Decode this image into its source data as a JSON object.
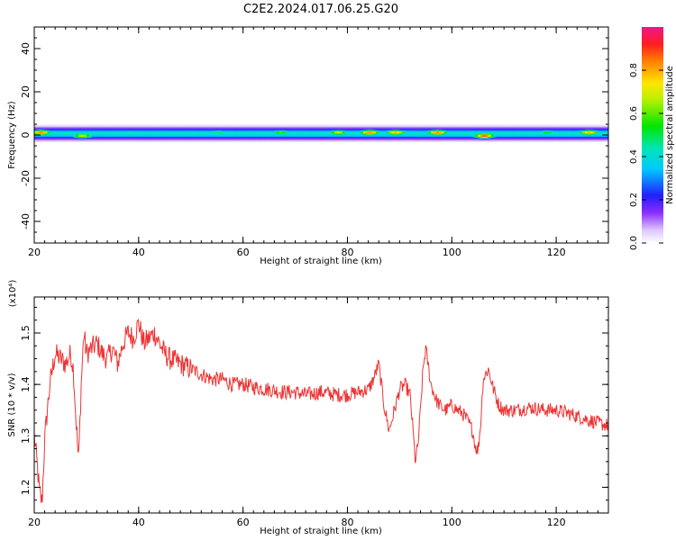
{
  "figure": {
    "title": "C2E2.2024.017.06.25.G20"
  },
  "colors": {
    "snr_line": "#ee3333",
    "spectrogram_colormap": "rainbow (white -> violet -> blue -> cyan -> green -> yellow -> red -> magenta)"
  },
  "chart_data": [
    {
      "type": "heatmap",
      "title": "",
      "xlabel": "Height of straight line (km)",
      "ylabel": "Frequency (Hz)",
      "xlim": [
        20,
        130
      ],
      "ylim": [
        -50,
        50
      ],
      "xticks": [
        "20",
        "40",
        "60",
        "80",
        "100",
        "120"
      ],
      "yticks": [
        "-40",
        "-20",
        "0",
        "20",
        "40"
      ],
      "grid": false,
      "colorbar": {
        "label": "Normalized spectral amplitude",
        "range": [
          0,
          1
        ],
        "ticks": [
          "0.0",
          "0.2",
          "0.4",
          "0.6",
          "0.8"
        ]
      },
      "band_center_hz": 0.5,
      "band_half_width_hz": 3,
      "hot_spots": [
        {
          "x": 21,
          "y": 1,
          "amp": 0.85
        },
        {
          "x": 29,
          "y": -0.5,
          "amp": 0.7
        },
        {
          "x": 38,
          "y": 1,
          "amp": 0.45
        },
        {
          "x": 55,
          "y": 1,
          "amp": 0.5
        },
        {
          "x": 67,
          "y": 1,
          "amp": 0.6
        },
        {
          "x": 78,
          "y": 1,
          "amp": 0.7
        },
        {
          "x": 84,
          "y": 1,
          "amp": 0.85
        },
        {
          "x": 89,
          "y": 1,
          "amp": 0.8
        },
        {
          "x": 97,
          "y": 1,
          "amp": 0.85
        },
        {
          "x": 106,
          "y": -0.5,
          "amp": 0.9
        },
        {
          "x": 118,
          "y": 1,
          "amp": 0.55
        },
        {
          "x": 126,
          "y": 1,
          "amp": 0.8
        }
      ]
    },
    {
      "type": "line",
      "title": "",
      "xlabel": "Height of straight line (km)",
      "ylabel": "SNR (10 * v/v)",
      "y_multiplier": "(x10⁴)",
      "xlim": [
        20,
        130
      ],
      "ylim": [
        1.15,
        1.57
      ],
      "xticks": [
        "20",
        "40",
        "60",
        "80",
        "100",
        "120"
      ],
      "yticks": [
        "1.2",
        "1.3",
        "1.4",
        "1.5"
      ],
      "grid": false,
      "series": [
        {
          "name": "",
          "x": [
            20,
            20.5,
            21,
            21.5,
            22,
            22.5,
            23,
            23.5,
            24,
            25,
            26,
            27,
            27.5,
            28,
            28.5,
            29,
            29.5,
            30,
            31,
            32,
            33,
            34,
            35,
            36,
            37,
            38,
            39,
            40,
            41,
            42,
            43,
            44,
            45,
            46,
            48,
            50,
            52,
            54,
            56,
            58,
            60,
            62,
            65,
            68,
            70,
            72,
            75,
            78,
            80,
            82,
            84,
            85,
            86,
            87,
            88,
            89,
            90,
            91,
            92,
            92.5,
            93,
            93.5,
            94,
            94.5,
            95,
            96,
            97,
            98,
            99,
            100,
            101,
            102,
            103,
            104,
            104.5,
            105,
            105.5,
            106,
            107,
            108,
            109,
            110,
            112,
            115,
            118,
            120,
            122,
            125,
            128,
            130
          ],
          "y": [
            1.3,
            1.25,
            1.19,
            1.17,
            1.29,
            1.35,
            1.4,
            1.43,
            1.46,
            1.45,
            1.44,
            1.46,
            1.43,
            1.33,
            1.25,
            1.4,
            1.5,
            1.46,
            1.47,
            1.48,
            1.46,
            1.45,
            1.47,
            1.44,
            1.48,
            1.5,
            1.49,
            1.52,
            1.48,
            1.49,
            1.5,
            1.48,
            1.46,
            1.45,
            1.44,
            1.43,
            1.42,
            1.41,
            1.41,
            1.4,
            1.4,
            1.395,
            1.39,
            1.385,
            1.385,
            1.38,
            1.385,
            1.38,
            1.38,
            1.385,
            1.39,
            1.41,
            1.44,
            1.36,
            1.31,
            1.35,
            1.39,
            1.4,
            1.38,
            1.32,
            1.25,
            1.28,
            1.35,
            1.43,
            1.47,
            1.4,
            1.37,
            1.355,
            1.35,
            1.36,
            1.35,
            1.345,
            1.33,
            1.31,
            1.28,
            1.27,
            1.32,
            1.41,
            1.43,
            1.39,
            1.36,
            1.35,
            1.35,
            1.355,
            1.35,
            1.35,
            1.345,
            1.335,
            1.325,
            1.32
          ],
          "color": "#ee3333"
        }
      ]
    }
  ]
}
